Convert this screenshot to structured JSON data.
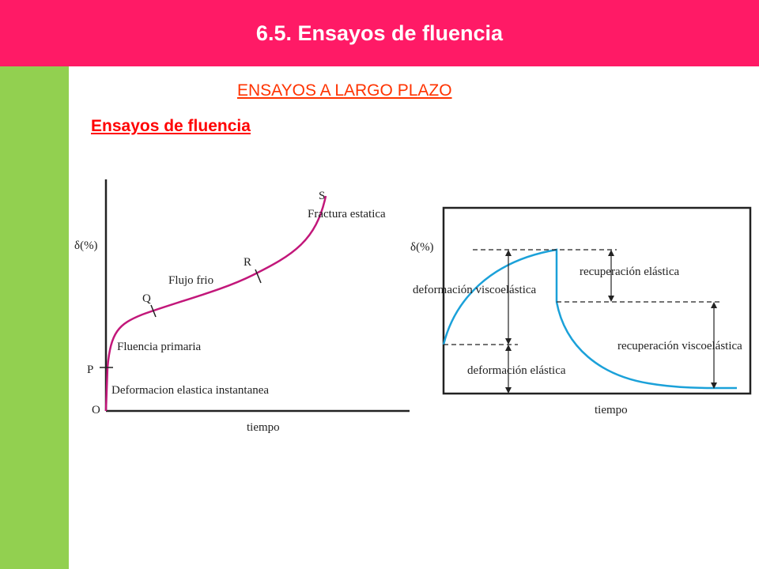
{
  "header": {
    "title": "6.5. Ensayos de fluencia"
  },
  "subtitle": "ENSAYOS A LARGO PLAZO",
  "section_title": "Ensayos de fluencia",
  "colors": {
    "header": "#ff1a66",
    "sidebar": "#92d050",
    "curve_left": "#c2177a",
    "curve_right": "#1ba1d9"
  },
  "diagram_left": {
    "y_label": "δ(%)",
    "x_label": "tiempo",
    "origin": "O",
    "points": {
      "P": "P",
      "Q": "Q",
      "R": "R",
      "S": "S"
    },
    "regions": {
      "instant": "Deformacion elastica instantanea",
      "primary": "Fluencia primaria",
      "cold": "Flujo frio",
      "fracture": "Fractura estatica"
    }
  },
  "diagram_right": {
    "y_label": "δ(%)",
    "x_label": "tiempo",
    "labels": {
      "visco_def": "deformación viscoelástica",
      "elastic_def": "deformación elástica",
      "elastic_rec": "recuperación elástica",
      "visco_rec": "recuperación viscoelástica"
    }
  }
}
